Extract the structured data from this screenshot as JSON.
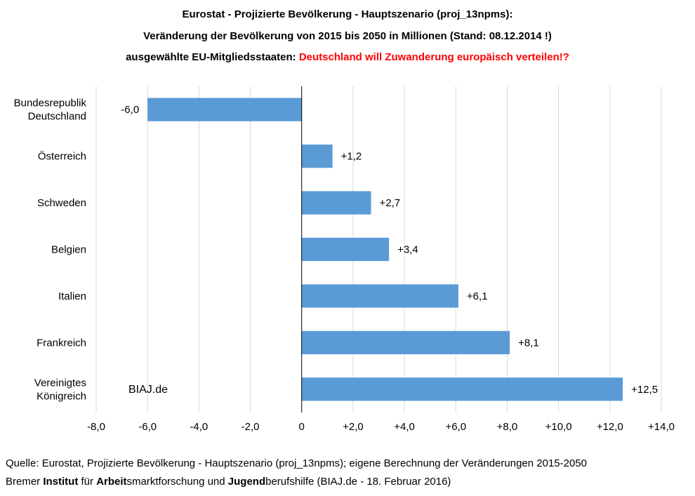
{
  "title": {
    "line1": "Eurostat - Projizierte Bevölkerung - Hauptszenario (proj_13npms):",
    "line2": "Veränderung der Bevölkerung von 2015 bis 2050 in Millionen  (Stand: 08.12.2014 !)",
    "line3_prefix": "ausgewählte EU-Mitgliedsstaaten:",
    "line3_highlight": "Deutschland will Zuwanderung europäisch verteilen!?",
    "highlight_color": "#ff0000"
  },
  "watermark": "BIAJ.de",
  "footer": {
    "source": "Quelle:  Eurostat,  Projizierte Bevölkerung  - Hauptszenario  (proj_13npms);  eigene Berechnung der Veränderungen 2015-2050",
    "org_parts": [
      {
        "text": "Bremer ",
        "bold": false
      },
      {
        "text": "Institut",
        "bold": true
      },
      {
        "text": " für ",
        "bold": false
      },
      {
        "text": "Arbeit",
        "bold": true
      },
      {
        "text": "smarktforschung  und  ",
        "bold": false
      },
      {
        "text": "Jugend",
        "bold": true
      },
      {
        "text": "berufshilfe  (BIAJ.de - 18. Februar 2016)",
        "bold": false
      }
    ]
  },
  "chart_data": {
    "type": "bar",
    "orientation": "horizontal",
    "categories": [
      [
        "Bundesrepublik",
        "Deutschland"
      ],
      [
        "Österreich"
      ],
      [
        "Schweden"
      ],
      [
        "Belgien"
      ],
      [
        "Italien"
      ],
      [
        "Frankreich"
      ],
      [
        "Vereinigtes",
        "Königreich"
      ]
    ],
    "values": [
      -6.0,
      1.2,
      2.7,
      3.4,
      6.1,
      8.1,
      12.5
    ],
    "value_labels": [
      "-6,0",
      "+1,2",
      "+2,7",
      "+3,4",
      "+6,1",
      "+8,1",
      "+12,5"
    ],
    "xlim": [
      -8,
      14
    ],
    "ticks": [
      -8,
      -6,
      -4,
      -2,
      0,
      2,
      4,
      6,
      8,
      10,
      12,
      14
    ],
    "tick_labels": [
      "-8,0",
      "-6,0",
      "-4,0",
      "-2,0",
      "0",
      "+2,0",
      "+4,0",
      "+6,0",
      "+8,0",
      "+10,0",
      "+12,0",
      "+14,0"
    ],
    "grid": true,
    "bar_color": "#5b9bd5",
    "grid_color": "#d9d9d9"
  }
}
